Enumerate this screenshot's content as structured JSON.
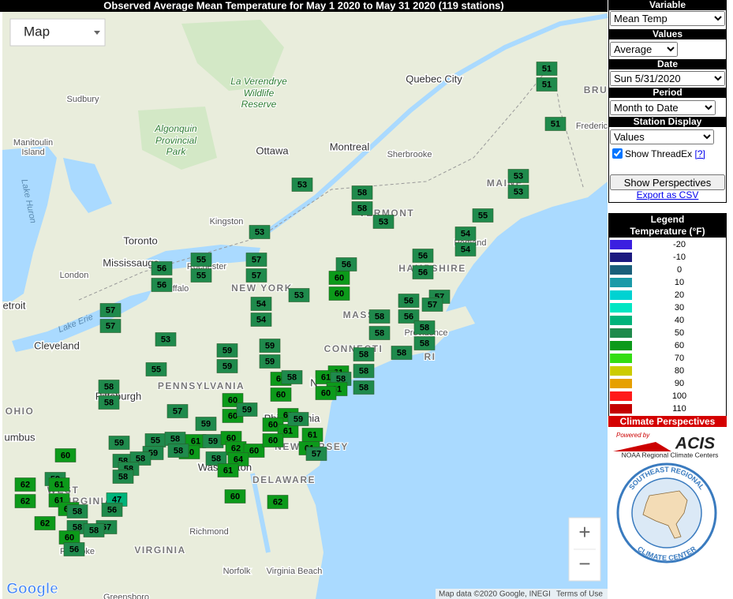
{
  "title": "Observed Average Mean Temperature for May 1 2020 to May 31 2020 (119 stations)",
  "map": {
    "type_button": "Map",
    "places": [
      "Quebec City",
      "Sudbury",
      "La Verendrye",
      "Wildlife",
      "Reserve",
      "Algonquin",
      "Provincial",
      "Park",
      "Ottawa",
      "Montreal",
      "Sherbrooke",
      "Frederic",
      "Manitoulin",
      "Island",
      "Lake Huron",
      "Kingston",
      "Toronto",
      "Mississauga",
      "London",
      "Rochester",
      "ffalo",
      "NEW YORK",
      "VERMONT",
      "HAMPSHIRE",
      "MAINE",
      "Portland",
      "MASS",
      "Providence",
      "CONNECTI",
      "RI",
      "etroit",
      "Lake Erie",
      "Cleveland",
      "PENNSYLVANIA",
      "Pittsburgh",
      "OHIO",
      "umbus",
      "Philadelphia",
      "NEW JERSEY",
      "N",
      "WEST",
      "VIRGINIA",
      "Washington",
      "DELAWARE",
      "VIRGINIA",
      "Richmond",
      "Norfolk",
      "Virginia Beach",
      "Roanoke",
      "Greensboro",
      "BRU"
    ],
    "attribution": "Map data ©2020 Google, INEGI",
    "terms": "Terms of Use",
    "logo": "Google",
    "zoom_in": "+",
    "zoom_out": "−"
  },
  "stations": [
    51,
    51,
    51,
    53,
    53,
    55,
    54,
    54,
    56,
    56,
    53,
    58,
    58,
    53,
    53,
    55,
    55,
    56,
    56,
    57,
    57,
    56,
    60,
    60,
    53,
    54,
    54,
    57,
    57,
    53,
    56,
    56,
    57,
    57,
    58,
    58,
    58,
    58,
    58,
    58,
    58,
    58,
    59,
    59,
    59,
    59,
    55,
    58,
    58,
    60,
    60,
    58,
    61,
    61,
    58,
    61,
    60,
    57,
    60,
    60,
    59,
    59,
    61,
    60,
    61,
    59,
    61,
    59,
    55,
    58,
    61,
    59,
    60,
    62,
    60,
    60,
    61,
    57,
    60,
    59,
    60,
    58,
    58,
    58,
    58,
    64,
    61,
    58,
    58,
    59,
    62,
    61,
    62,
    61,
    47,
    61,
    56,
    58,
    60,
    62,
    62,
    58,
    57,
    58,
    60,
    56
  ],
  "panel": {
    "variable": {
      "label": "Variable",
      "selected": "Mean Temp"
    },
    "values": {
      "label": "Values",
      "selected": "Average"
    },
    "date": {
      "label": "Date",
      "selected": "Sun 5/31/2020"
    },
    "period": {
      "label": "Period",
      "selected": "Month to Date"
    },
    "station_display": {
      "label": "Station Display",
      "selected": "Values"
    },
    "threadex": {
      "label": "Show ThreadEx",
      "help": "[?]",
      "checked": true
    },
    "show_perspectives": "Show Perspectives",
    "export": "Export as CSV"
  },
  "legend": {
    "title": "Legend",
    "subtitle": "Temperature (°F)",
    "bins": [
      {
        "value": -20,
        "color": "#3b1fe0"
      },
      {
        "value": -10,
        "color": "#1c1a80"
      },
      {
        "value": 0,
        "color": "#1a5f7a"
      },
      {
        "value": 10,
        "color": "#1a9aa8"
      },
      {
        "value": 20,
        "color": "#00d2d2"
      },
      {
        "value": 30,
        "color": "#00e6c3"
      },
      {
        "value": 40,
        "color": "#00b37a"
      },
      {
        "value": 50,
        "color": "#1f8a4c"
      },
      {
        "value": 60,
        "color": "#0c9a1a"
      },
      {
        "value": 70,
        "color": "#33dd11"
      },
      {
        "value": 80,
        "color": "#cccc00"
      },
      {
        "value": 90,
        "color": "#e6a000"
      },
      {
        "value": 100,
        "color": "#ff1a1a"
      },
      {
        "value": 110,
        "color": "#c40000"
      }
    ]
  },
  "footer": {
    "climate_perspectives": "Climate Perspectives",
    "powered_by": "Powered by",
    "acis": "ACIS",
    "rcc": "NOAA Regional Climate Centers",
    "sercc_top": "SOUTHEAST REGIONAL",
    "sercc_bottom": "CLIMATE CENTER"
  }
}
